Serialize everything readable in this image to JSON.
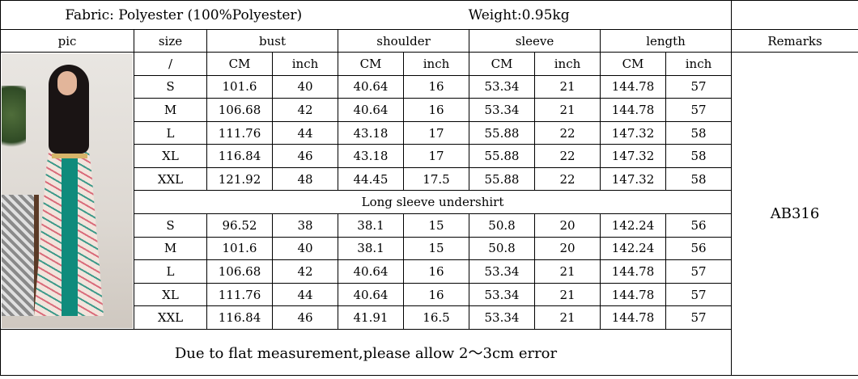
{
  "header": {
    "fabric": "Fabric: Polyester (100%Polyester)",
    "weight": "Weight:0.95kg"
  },
  "columns": {
    "pic": "pic",
    "size": "size",
    "bust": "bust",
    "shoulder": "shoulder",
    "sleeve": "sleeve",
    "length": "length",
    "remarks": "Remarks"
  },
  "units": [
    "/",
    "CM",
    "inch",
    "CM",
    "inch",
    "CM",
    "inch",
    "CM",
    "inch"
  ],
  "rows_main": [
    [
      "S",
      "101.6",
      "40",
      "40.64",
      "16",
      "53.34",
      "21",
      "144.78",
      "57"
    ],
    [
      "M",
      "106.68",
      "42",
      "40.64",
      "16",
      "53.34",
      "21",
      "144.78",
      "57"
    ],
    [
      "L",
      "111.76",
      "44",
      "43.18",
      "17",
      "55.88",
      "22",
      "147.32",
      "58"
    ],
    [
      "XL",
      "116.84",
      "46",
      "43.18",
      "17",
      "55.88",
      "22",
      "147.32",
      "58"
    ],
    [
      "XXL",
      "121.92",
      "48",
      "44.45",
      "17.5",
      "55.88",
      "22",
      "147.32",
      "58"
    ]
  ],
  "section_label": "Long sleeve undershirt",
  "rows_undershirt": [
    [
      "S",
      "96.52",
      "38",
      "38.1",
      "15",
      "50.8",
      "20",
      "142.24",
      "56"
    ],
    [
      "M",
      "101.6",
      "40",
      "38.1",
      "15",
      "50.8",
      "20",
      "142.24",
      "56"
    ],
    [
      "L",
      "106.68",
      "42",
      "40.64",
      "16",
      "53.34",
      "21",
      "144.78",
      "57"
    ],
    [
      "XL",
      "111.76",
      "44",
      "40.64",
      "16",
      "53.34",
      "21",
      "144.78",
      "57"
    ],
    [
      "XXL",
      "116.84",
      "46",
      "41.91",
      "16.5",
      "53.34",
      "21",
      "144.78",
      "57"
    ]
  ],
  "remarks_value": "AB316",
  "footer_note": "Due to flat measurement,please allow 2～3cm error"
}
